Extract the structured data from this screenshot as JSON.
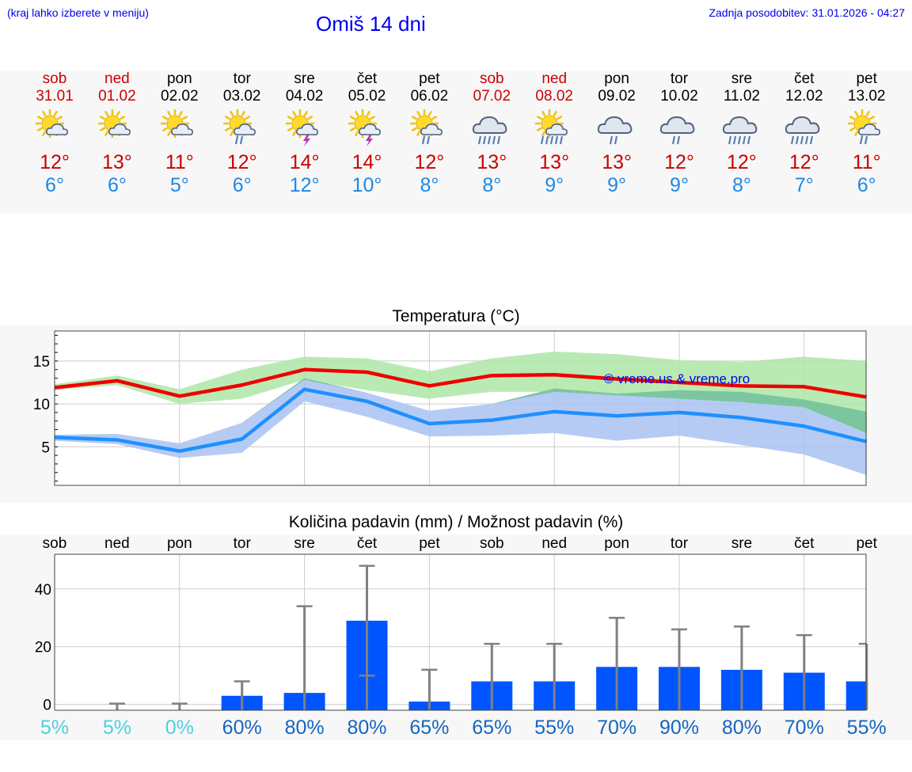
{
  "header": {
    "hint": "(kraj lahko izberete v meniju)",
    "title": "Omiš 14 dni",
    "updated": "Zadnja posodobitev: 31.01.2026 - 04:27"
  },
  "colors": {
    "max": "#ee0000",
    "min": "#1e90ff",
    "bars": "#0055ff",
    "whisker": "#808080",
    "weekend": "#cc0000"
  },
  "days": [
    {
      "name": "sob",
      "date": "31.01",
      "weekend": true,
      "icon": "sun-cloud-icon",
      "max": "12°",
      "min": "6°"
    },
    {
      "name": "ned",
      "date": "01.02",
      "weekend": true,
      "icon": "sun-cloud-icon",
      "max": "13°",
      "min": "6°"
    },
    {
      "name": "pon",
      "date": "02.02",
      "weekend": false,
      "icon": "sun-cloud-icon",
      "max": "11°",
      "min": "5°"
    },
    {
      "name": "tor",
      "date": "03.02",
      "weekend": false,
      "icon": "sun-cloud-rain-icon",
      "max": "12°",
      "min": "6°"
    },
    {
      "name": "sre",
      "date": "04.02",
      "weekend": false,
      "icon": "sun-thunder-icon",
      "max": "14°",
      "min": "12°"
    },
    {
      "name": "čet",
      "date": "05.02",
      "weekend": false,
      "icon": "sun-thunder-icon",
      "max": "14°",
      "min": "10°"
    },
    {
      "name": "pet",
      "date": "06.02",
      "weekend": false,
      "icon": "sun-cloud-rain-icon",
      "max": "12°",
      "min": "8°"
    },
    {
      "name": "sob",
      "date": "07.02",
      "weekend": true,
      "icon": "cloud-heavy-rain-icon",
      "max": "13°",
      "min": "8°"
    },
    {
      "name": "ned",
      "date": "08.02",
      "weekend": true,
      "icon": "sun-cloud-heavy-rain-icon",
      "max": "13°",
      "min": "9°"
    },
    {
      "name": "pon",
      "date": "09.02",
      "weekend": false,
      "icon": "cloud-rain-icon",
      "max": "13°",
      "min": "9°"
    },
    {
      "name": "tor",
      "date": "10.02",
      "weekend": false,
      "icon": "cloud-rain-icon",
      "max": "12°",
      "min": "9°"
    },
    {
      "name": "sre",
      "date": "11.02",
      "weekend": false,
      "icon": "cloud-heavy-rain-icon",
      "max": "12°",
      "min": "8°"
    },
    {
      "name": "čet",
      "date": "12.02",
      "weekend": false,
      "icon": "cloud-heavy-rain-icon",
      "max": "12°",
      "min": "7°"
    },
    {
      "name": "pet",
      "date": "13.02",
      "weekend": false,
      "icon": "sun-cloud-rain-icon",
      "max": "11°",
      "min": "6°"
    }
  ],
  "chart_data": [
    {
      "type": "line",
      "title": "Temperatura (°C)",
      "watermark": "© vreme.us & vreme.pro",
      "x": [
        0,
        1,
        2,
        3,
        4,
        5,
        6,
        7,
        8,
        9,
        10,
        11,
        12,
        13
      ],
      "ylim": [
        0.5,
        18.5
      ],
      "yticks": [
        5,
        10,
        15
      ],
      "series": [
        {
          "name": "max",
          "values": [
            11.9,
            12.7,
            10.9,
            12.2,
            14.0,
            13.7,
            12.1,
            13.3,
            13.4,
            12.9,
            12.5,
            12.1,
            12.0,
            10.8
          ],
          "band_low": [
            11.6,
            12.2,
            10.0,
            10.6,
            12.8,
            11.6,
            10.6,
            11.4,
            11.4,
            11.0,
            10.6,
            10.2,
            9.6,
            6.6
          ],
          "band_high": [
            12.3,
            13.3,
            11.7,
            14.0,
            15.5,
            15.3,
            13.8,
            15.3,
            16.1,
            15.8,
            15.1,
            14.9,
            15.5,
            15.0
          ]
        },
        {
          "name": "min",
          "values": [
            6.1,
            5.8,
            4.5,
            5.9,
            11.7,
            10.3,
            7.7,
            8.1,
            9.1,
            8.6,
            9.0,
            8.4,
            7.4,
            5.6
          ],
          "band_low": [
            5.7,
            5.3,
            3.7,
            4.3,
            10.3,
            8.5,
            6.2,
            6.3,
            6.6,
            5.7,
            6.3,
            5.2,
            4.1,
            1.7
          ],
          "band_high": [
            6.4,
            6.5,
            5.4,
            7.8,
            13.0,
            11.3,
            9.2,
            10.0,
            11.8,
            11.2,
            11.6,
            11.4,
            10.5,
            9.1
          ]
        }
      ]
    },
    {
      "type": "bar",
      "title": "Količina padavin (mm) / Možnost padavin (%)",
      "categories": [
        "sob",
        "ned",
        "pon",
        "tor",
        "sre",
        "čet",
        "pet",
        "sob",
        "ned",
        "pon",
        "tor",
        "sre",
        "čet",
        "pet"
      ],
      "values": [
        0,
        0,
        0,
        3,
        4,
        29,
        1,
        8,
        8,
        13,
        13,
        12,
        11,
        8
      ],
      "error_high": [
        0,
        0.3,
        0.3,
        8,
        34,
        48,
        12,
        21,
        21,
        30,
        26,
        27,
        24,
        21
      ],
      "error_low": [
        0,
        0,
        0,
        0,
        0,
        10,
        0,
        0,
        0,
        0,
        0,
        0,
        0,
        0
      ],
      "probability": [
        "5%",
        "5%",
        "0%",
        "60%",
        "80%",
        "80%",
        "65%",
        "65%",
        "55%",
        "70%",
        "90%",
        "80%",
        "70%",
        "55%"
      ],
      "probability_values": [
        5,
        5,
        0,
        60,
        80,
        80,
        65,
        65,
        55,
        70,
        90,
        80,
        70,
        55
      ],
      "ylim": [
        -2,
        52
      ],
      "yticks": [
        0,
        20,
        40
      ]
    }
  ]
}
